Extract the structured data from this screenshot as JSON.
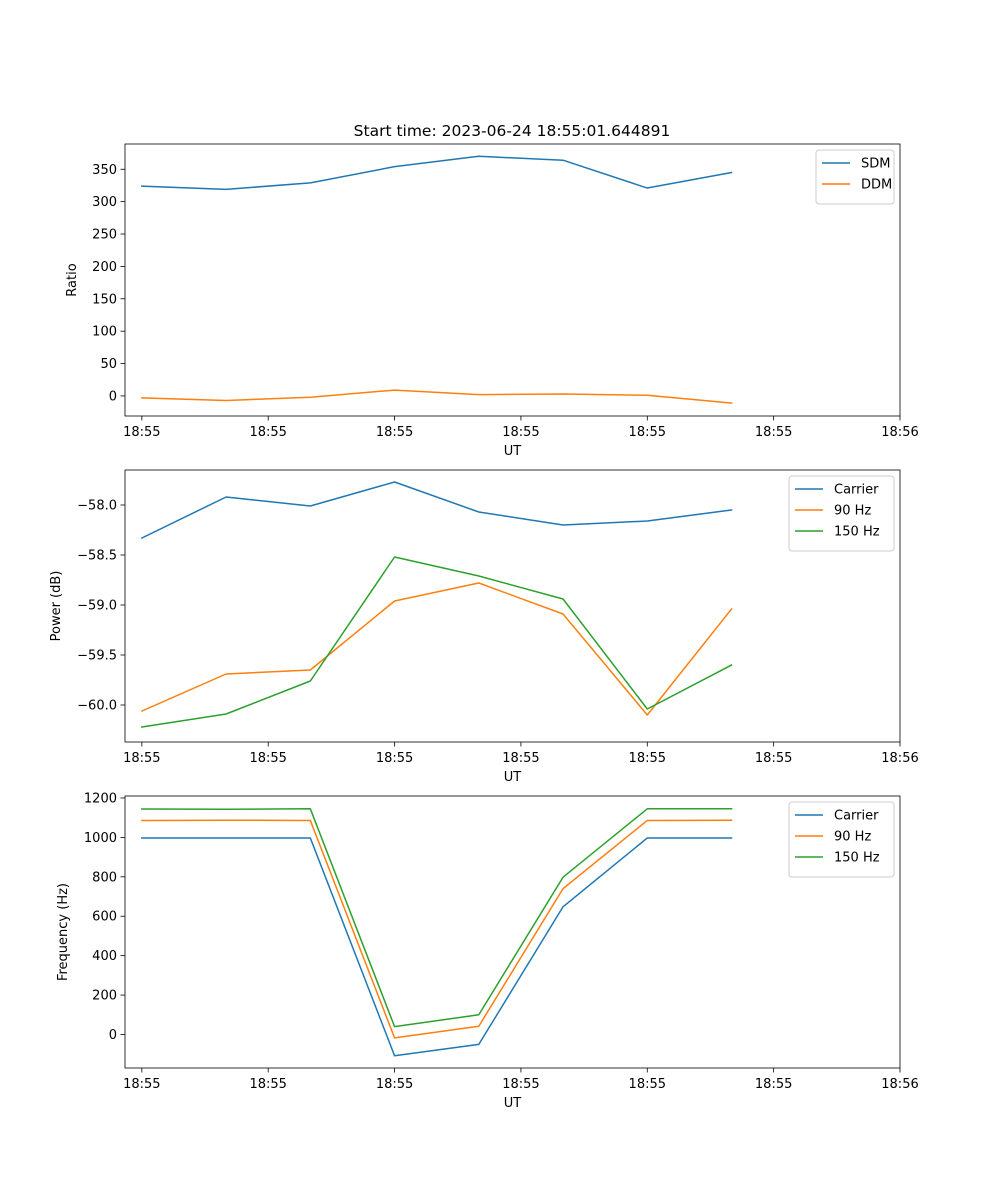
{
  "figure": {
    "title": "Start time: 2023-06-24 18:55:01.644891"
  },
  "chart_data": [
    {
      "type": "line",
      "xlabel": "UT",
      "ylabel": "Ratio",
      "x": [
        1,
        2,
        3,
        4,
        5,
        6,
        7,
        8
      ],
      "xlim": [
        0.8,
        10.0
      ],
      "xticks": [
        1.0,
        2.5,
        4.0,
        5.5,
        7.0,
        8.5,
        10.0
      ],
      "xticklabels": [
        "18:55",
        "18:55",
        "18:55",
        "18:55",
        "18:55",
        "18:55",
        "18:56"
      ],
      "ylim": [
        -31,
        389
      ],
      "yticks": [
        0,
        50,
        100,
        150,
        200,
        250,
        300,
        350
      ],
      "yticklabels": [
        "0",
        "50",
        "100",
        "150",
        "200",
        "250",
        "300",
        "350"
      ],
      "legend": "top-right",
      "series": [
        {
          "name": "SDM",
          "color": "#1f77b4",
          "values": [
            324,
            319,
            329,
            354,
            370,
            364,
            321,
            345
          ]
        },
        {
          "name": "DDM",
          "color": "#ff7f0e",
          "values": [
            -3,
            -7,
            -2,
            9,
            2,
            3,
            1,
            -11
          ]
        }
      ]
    },
    {
      "type": "line",
      "xlabel": "UT",
      "ylabel": "Power (dB)",
      "x": [
        1,
        2,
        3,
        4,
        5,
        6,
        7,
        8
      ],
      "xlim": [
        0.8,
        10.0
      ],
      "xticks": [
        1.0,
        2.5,
        4.0,
        5.5,
        7.0,
        8.5,
        10.0
      ],
      "xticklabels": [
        "18:55",
        "18:55",
        "18:55",
        "18:55",
        "18:55",
        "18:55",
        "18:56"
      ],
      "ylim": [
        -60.37,
        -57.65
      ],
      "yticks": [
        -60.0,
        -59.5,
        -59.0,
        -58.5,
        -58.0
      ],
      "yticklabels": [
        "−60.0",
        "−59.5",
        "−59.0",
        "−58.5",
        "−58.0"
      ],
      "legend": "top-right",
      "series": [
        {
          "name": "Carrier",
          "color": "#1f77b4",
          "values": [
            -58.33,
            -57.92,
            -58.01,
            -57.77,
            -58.07,
            -58.2,
            -58.16,
            -58.05
          ]
        },
        {
          "name": "90 Hz",
          "color": "#ff7f0e",
          "values": [
            -60.06,
            -59.69,
            -59.65,
            -58.96,
            -58.78,
            -59.09,
            -60.1,
            -59.04
          ]
        },
        {
          "name": "150 Hz",
          "color": "#2ca02c",
          "values": [
            -60.22,
            -60.09,
            -59.76,
            -58.52,
            -58.71,
            -58.94,
            -60.04,
            -59.6
          ]
        }
      ]
    },
    {
      "type": "line",
      "xlabel": "UT",
      "ylabel": "Frequency (Hz)",
      "x": [
        1,
        2,
        3,
        4,
        5,
        6,
        7,
        8
      ],
      "xlim": [
        0.8,
        10.0
      ],
      "xticks": [
        1.0,
        2.5,
        4.0,
        5.5,
        7.0,
        8.5,
        10.0
      ],
      "xticklabels": [
        "18:55",
        "18:55",
        "18:55",
        "18:55",
        "18:55",
        "18:55",
        "18:56"
      ],
      "ylim": [
        -170,
        1210
      ],
      "yticks": [
        0,
        200,
        400,
        600,
        800,
        1000,
        1200
      ],
      "yticklabels": [
        "0",
        "200",
        "400",
        "600",
        "800",
        "1000",
        "1200"
      ],
      "legend": "top-right",
      "series": [
        {
          "name": "Carrier",
          "color": "#1f77b4",
          "values": [
            997,
            997,
            997,
            -108,
            -50,
            648,
            997,
            997
          ]
        },
        {
          "name": "90 Hz",
          "color": "#ff7f0e",
          "values": [
            1086,
            1087,
            1086,
            -17,
            42,
            740,
            1086,
            1087
          ]
        },
        {
          "name": "150 Hz",
          "color": "#2ca02c",
          "values": [
            1144,
            1143,
            1145,
            40,
            100,
            798,
            1145,
            1145
          ]
        }
      ]
    }
  ]
}
